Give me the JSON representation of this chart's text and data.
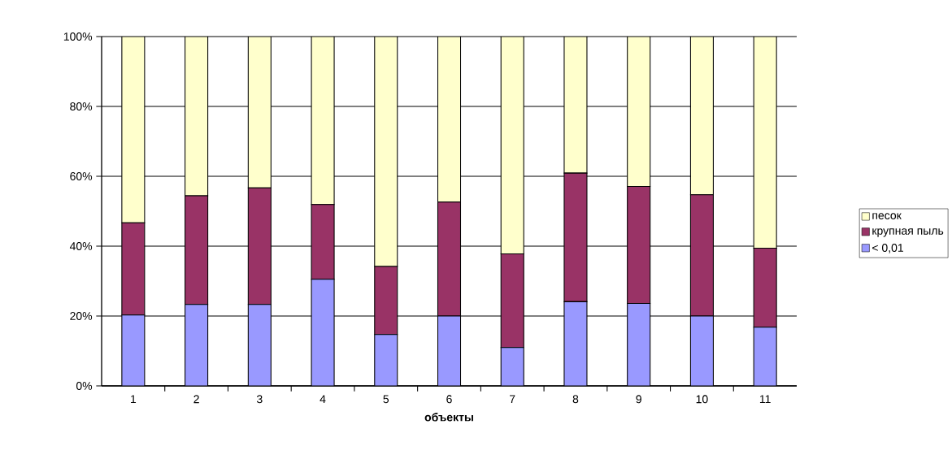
{
  "chart_data": {
    "type": "bar",
    "stacked": true,
    "xlabel": "объекты",
    "categories": [
      "1",
      "2",
      "3",
      "4",
      "5",
      "6",
      "7",
      "8",
      "9",
      "10",
      "11"
    ],
    "series": [
      {
        "name": "< 0,01",
        "color": "#9999ff",
        "values": [
          20.3,
          23.3,
          23.3,
          30.5,
          14.7,
          20.0,
          11.0,
          24.1,
          23.6,
          20.0,
          16.8
        ]
      },
      {
        "name": "крупная пыль",
        "color": "#993366",
        "values": [
          26.4,
          31.1,
          33.4,
          21.4,
          19.5,
          32.6,
          26.8,
          36.8,
          33.5,
          34.7,
          22.6
        ]
      },
      {
        "name": "песок",
        "color": "#ffffcc",
        "values": [
          53.3,
          45.6,
          43.3,
          48.1,
          65.8,
          47.4,
          62.2,
          39.1,
          42.9,
          45.3,
          60.6
        ]
      }
    ],
    "ylim": [
      0,
      100
    ],
    "yticks": [
      {
        "value": 0,
        "label": "0%"
      },
      {
        "value": 20,
        "label": "20%"
      },
      {
        "value": 40,
        "label": "40%"
      },
      {
        "value": 60,
        "label": "60%"
      },
      {
        "value": 80,
        "label": "80%"
      },
      {
        "value": 100,
        "label": "100%"
      }
    ],
    "grid": "y",
    "legend": "right"
  }
}
